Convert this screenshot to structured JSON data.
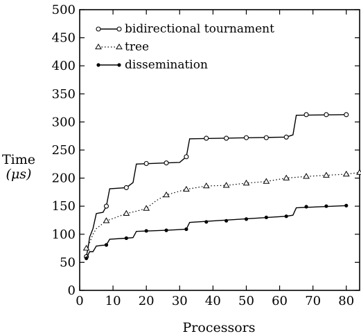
{
  "chart_data": {
    "type": "line",
    "title": "",
    "xlabel": "Processors",
    "ylabel": "Time",
    "ylabel_unit": "(μs)",
    "xlim": [
      0,
      84
    ],
    "ylim": [
      0,
      500
    ],
    "xticks": [
      0,
      10,
      20,
      30,
      40,
      50,
      60,
      70,
      80
    ],
    "yticks": [
      0,
      50,
      100,
      150,
      200,
      250,
      300,
      350,
      400,
      450,
      500
    ],
    "grid": false,
    "legend_position": "top-left",
    "series": [
      {
        "name": "bidirectional tournament",
        "marker": "open-circle",
        "line_style": "solid",
        "markers": [
          [
            2,
            60
          ],
          [
            8,
            150
          ],
          [
            14,
            183
          ],
          [
            20,
            226
          ],
          [
            26,
            227
          ],
          [
            32,
            238
          ],
          [
            38,
            271
          ],
          [
            44,
            271
          ],
          [
            50,
            272
          ],
          [
            56,
            272
          ],
          [
            62,
            273
          ],
          [
            68,
            313
          ],
          [
            74,
            313
          ],
          [
            80,
            313
          ]
        ],
        "line": [
          [
            2,
            60
          ],
          [
            2.5,
            75
          ],
          [
            3,
            95
          ],
          [
            4,
            110
          ],
          [
            5,
            137
          ],
          [
            7,
            139
          ],
          [
            8,
            150
          ],
          [
            9,
            181
          ],
          [
            14,
            183
          ],
          [
            16,
            192
          ],
          [
            17,
            225
          ],
          [
            30,
            228
          ],
          [
            32,
            238
          ],
          [
            33,
            270
          ],
          [
            62,
            273
          ],
          [
            64,
            277
          ],
          [
            65,
            312
          ],
          [
            80,
            313
          ]
        ]
      },
      {
        "name": "tree",
        "marker": "open-triangle",
        "line_style": "dotted",
        "markers": [
          [
            2,
            75
          ],
          [
            8,
            124
          ],
          [
            14,
            137
          ],
          [
            20,
            146
          ],
          [
            26,
            170
          ],
          [
            32,
            180
          ],
          [
            38,
            186
          ],
          [
            44,
            187
          ],
          [
            50,
            191
          ],
          [
            56,
            194
          ],
          [
            62,
            200
          ],
          [
            68,
            203
          ],
          [
            74,
            205
          ],
          [
            80,
            207
          ],
          [
            84,
            210
          ]
        ],
        "line": [
          [
            2,
            75
          ],
          [
            3,
            85
          ],
          [
            4,
            100
          ],
          [
            5,
            110
          ],
          [
            8,
            124
          ],
          [
            10,
            128
          ],
          [
            14,
            137
          ],
          [
            17,
            141
          ],
          [
            20,
            146
          ],
          [
            23,
            160
          ],
          [
            26,
            170
          ],
          [
            29,
            175
          ],
          [
            32,
            180
          ],
          [
            35,
            183
          ],
          [
            38,
            186
          ],
          [
            44,
            187
          ],
          [
            50,
            191
          ],
          [
            56,
            194
          ],
          [
            62,
            200
          ],
          [
            68,
            203
          ],
          [
            74,
            205
          ],
          [
            80,
            207
          ],
          [
            84,
            210
          ]
        ]
      },
      {
        "name": "dissemination",
        "marker": "filled-dot",
        "line_style": "solid",
        "markers": [
          [
            2,
            57
          ],
          [
            8,
            81
          ],
          [
            14,
            93
          ],
          [
            20,
            106
          ],
          [
            26,
            107
          ],
          [
            32,
            109
          ],
          [
            38,
            122
          ],
          [
            44,
            124
          ],
          [
            50,
            127
          ],
          [
            56,
            130
          ],
          [
            62,
            132
          ],
          [
            68,
            149
          ],
          [
            74,
            150
          ],
          [
            80,
            151
          ]
        ],
        "line": [
          [
            2,
            57
          ],
          [
            3,
            69
          ],
          [
            4,
            69
          ],
          [
            5,
            79
          ],
          [
            8,
            81
          ],
          [
            9,
            91
          ],
          [
            14,
            93
          ],
          [
            16,
            94
          ],
          [
            17,
            105
          ],
          [
            26,
            107
          ],
          [
            32,
            109
          ],
          [
            33,
            121
          ],
          [
            62,
            132
          ],
          [
            64,
            134
          ],
          [
            65,
            147
          ],
          [
            80,
            151
          ]
        ]
      }
    ]
  }
}
